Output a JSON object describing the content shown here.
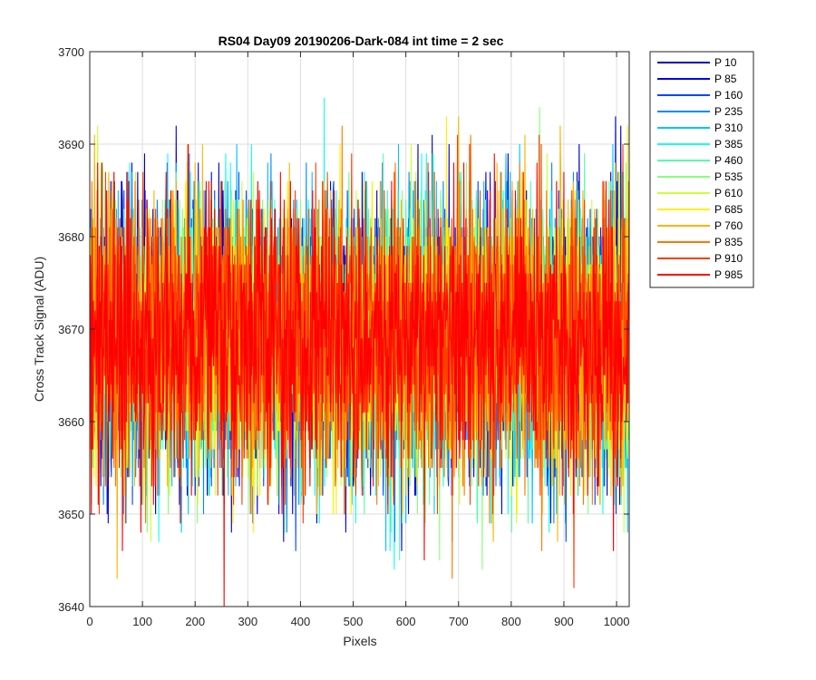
{
  "chart_data": {
    "type": "line",
    "title": "RS04 Day09 20190206-Dark-084 int time = 2 sec",
    "xlabel": "Pixels",
    "ylabel": "Cross Track Signal (ADU)",
    "xlim": [
      0,
      1024
    ],
    "ylim": [
      3640,
      3700
    ],
    "xticks": [
      0,
      100,
      200,
      300,
      400,
      500,
      600,
      700,
      800,
      900,
      1000
    ],
    "yticks": [
      3640,
      3650,
      3660,
      3670,
      3680,
      3690,
      3700
    ],
    "grid": true,
    "legend_position": "outside-right",
    "n_points": 1024,
    "series": [
      {
        "name": "P 10",
        "color": "#0000b3",
        "mean": 3669,
        "std": 7.5,
        "seed": 11
      },
      {
        "name": "P 85",
        "color": "#0000f0",
        "mean": 3669,
        "std": 7.5,
        "seed": 23
      },
      {
        "name": "P 160",
        "color": "#0044ff",
        "mean": 3669,
        "std": 7.5,
        "seed": 37
      },
      {
        "name": "P 235",
        "color": "#0088ff",
        "mean": 3669,
        "std": 7.5,
        "seed": 41
      },
      {
        "name": "P 310",
        "color": "#00c4ff",
        "mean": 3669,
        "std": 7.5,
        "seed": 53
      },
      {
        "name": "P 385",
        "color": "#11ffee",
        "mean": 3669,
        "std": 7.5,
        "seed": 67
      },
      {
        "name": "P 460",
        "color": "#55ffaa",
        "mean": 3669,
        "std": 7.5,
        "seed": 71
      },
      {
        "name": "P 535",
        "color": "#88ff77",
        "mean": 3669,
        "std": 7.5,
        "seed": 83
      },
      {
        "name": "P 610",
        "color": "#ccff33",
        "mean": 3669,
        "std": 7.5,
        "seed": 97
      },
      {
        "name": "P 685",
        "color": "#ffee00",
        "mean": 3669,
        "std": 7.5,
        "seed": 101
      },
      {
        "name": "P 760",
        "color": "#ffb300",
        "mean": 3669,
        "std": 7.5,
        "seed": 113
      },
      {
        "name": "P 835",
        "color": "#ff7700",
        "mean": 3669,
        "std": 7.5,
        "seed": 127
      },
      {
        "name": "P 910",
        "color": "#ff3c00",
        "mean": 3669,
        "std": 7.5,
        "seed": 131
      },
      {
        "name": "P 985",
        "color": "#ff0000",
        "mean": 3669,
        "std": 7.5,
        "seed": 139
      }
    ]
  }
}
